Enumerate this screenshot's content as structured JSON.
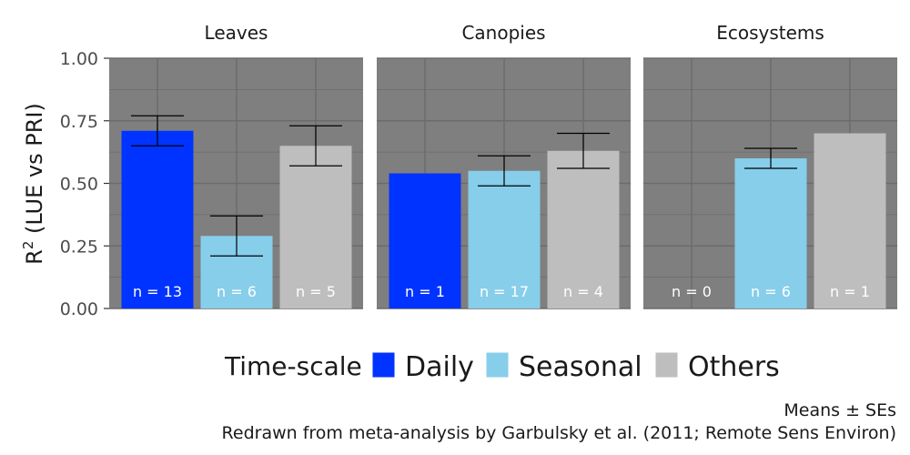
{
  "chart_data": {
    "type": "bar",
    "ylabel_base": "R",
    "ylabel_sup": "2",
    "ylabel_rest": " (LUE vs PRI)",
    "ylim": [
      0,
      1
    ],
    "yticks": [
      "0.00",
      "0.25",
      "0.50",
      "0.75",
      "1.00"
    ],
    "ytick_values": [
      0,
      0.25,
      0.5,
      0.75,
      1.0
    ],
    "categories": [
      "Daily",
      "Seasonal",
      "Others"
    ],
    "legend_title": "Time-scale",
    "legend_position": "bottom",
    "grid": true,
    "colors": {
      "Daily": "#0033ff",
      "Seasonal": "#87ceeb",
      "Others": "#bebebe",
      "panel": "#7f7f7f",
      "grid": "#6b6b6b"
    },
    "facets": [
      {
        "title": "Leaves",
        "bars": [
          {
            "category": "Daily",
            "value": 0.71,
            "se_low": 0.65,
            "se_high": 0.77,
            "n_label": "n = 13"
          },
          {
            "category": "Seasonal",
            "value": 0.29,
            "se_low": 0.21,
            "se_high": 0.37,
            "n_label": "n = 6"
          },
          {
            "category": "Others",
            "value": 0.65,
            "se_low": 0.57,
            "se_high": 0.73,
            "n_label": "n = 5"
          }
        ]
      },
      {
        "title": "Canopies",
        "bars": [
          {
            "category": "Daily",
            "value": 0.54,
            "se_low": null,
            "se_high": null,
            "n_label": "n = 1"
          },
          {
            "category": "Seasonal",
            "value": 0.55,
            "se_low": 0.49,
            "se_high": 0.61,
            "n_label": "n = 17"
          },
          {
            "category": "Others",
            "value": 0.63,
            "se_low": 0.56,
            "se_high": 0.7,
            "n_label": "n = 4"
          }
        ]
      },
      {
        "title": "Ecosystems",
        "bars": [
          {
            "category": "Daily",
            "value": null,
            "se_low": null,
            "se_high": null,
            "n_label": "n = 0"
          },
          {
            "category": "Seasonal",
            "value": 0.6,
            "se_low": 0.56,
            "se_high": 0.64,
            "n_label": "n = 6"
          },
          {
            "category": "Others",
            "value": 0.7,
            "se_low": null,
            "se_high": null,
            "n_label": "n = 1"
          }
        ]
      }
    ],
    "caption_lines": [
      "Means ± SEs",
      "Redrawn from meta-analysis by Garbulsky et al. (2011; Remote Sens Environ)"
    ]
  }
}
